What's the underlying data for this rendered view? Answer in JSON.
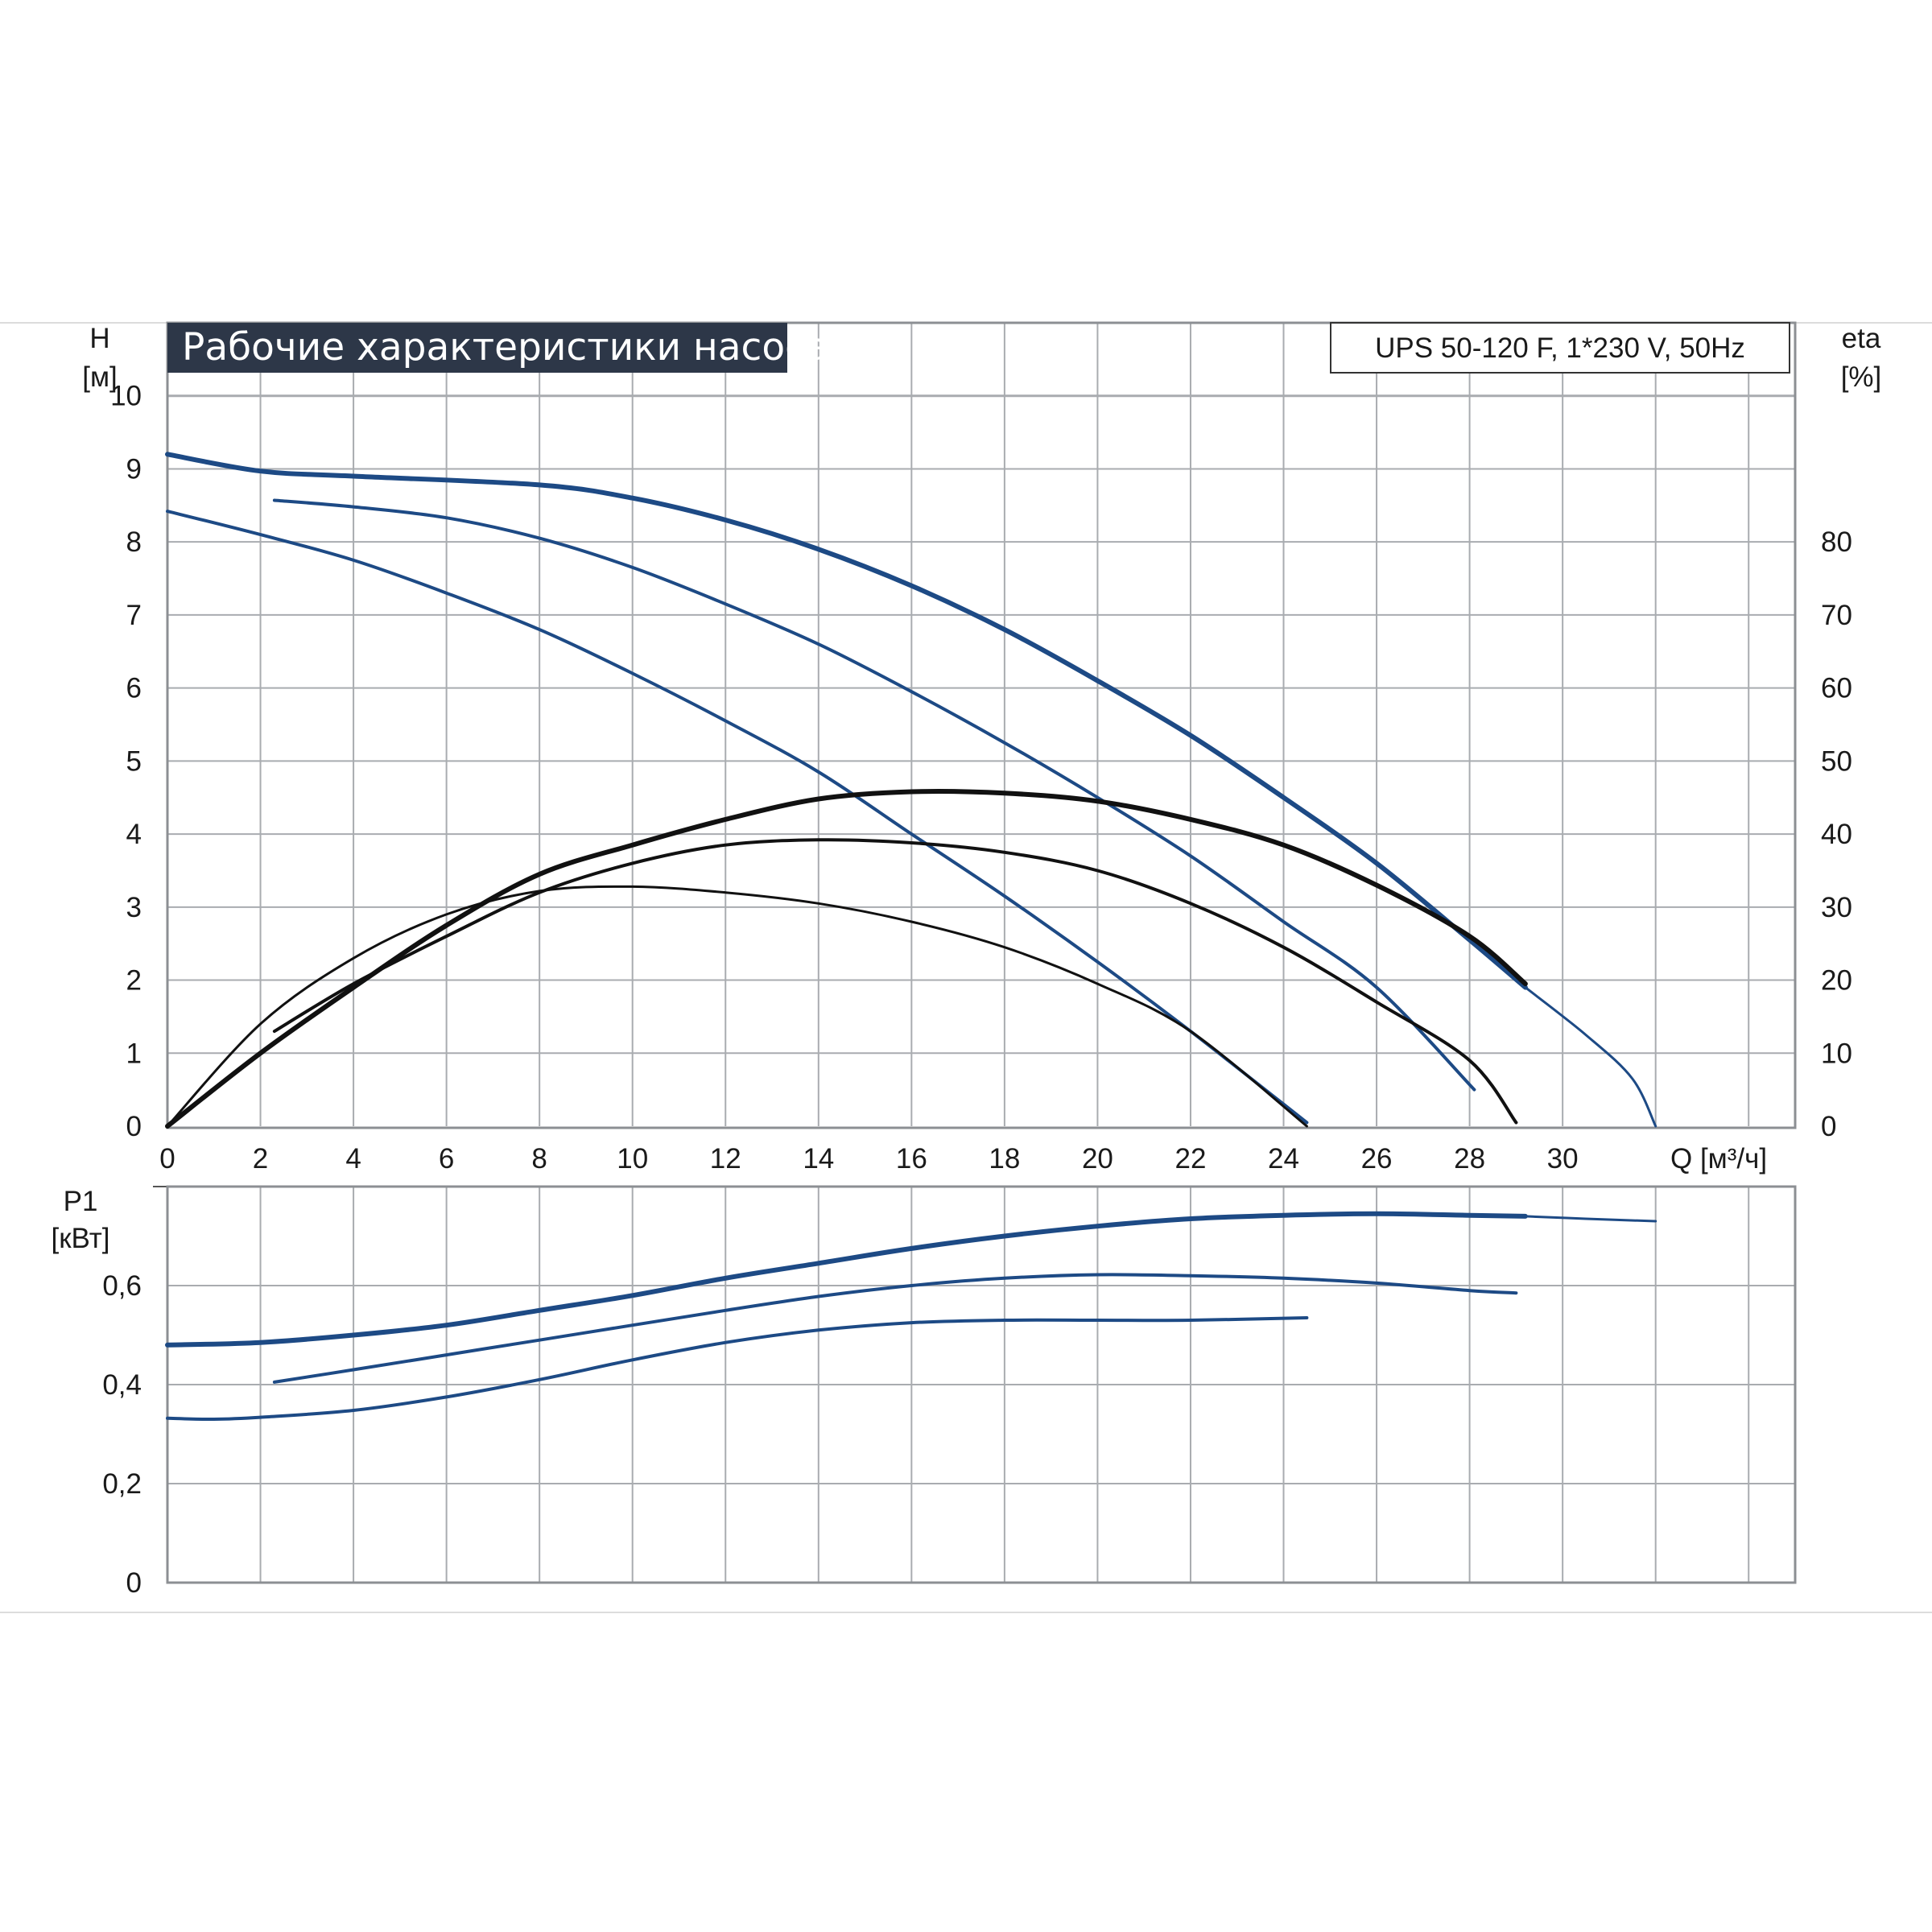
{
  "title": "Рабочие характеристики насоса",
  "model": "UPS 50-120 F, 1*230 V, 50Hz",
  "colors": {
    "blue": "#1d4a85",
    "black": "#111111",
    "grid": "#a9acb0",
    "title_bg": "#2d3748"
  },
  "chart_data": [
    {
      "id": "head-efficiency",
      "type": "line",
      "title": "Рабочие характеристики насоса",
      "xlabel": "Q [м³/ч]",
      "ylabel": "H [м]",
      "ylabel_name": "H",
      "ylabel_unit": "[м]",
      "y2label_name": "eta",
      "y2label_unit": "[%]",
      "xlim": [
        0,
        35
      ],
      "ylim": [
        0,
        11
      ],
      "y2lim": [
        0,
        110
      ],
      "xticks": [
        0,
        2,
        4,
        6,
        8,
        10,
        12,
        14,
        16,
        18,
        20,
        22,
        24,
        26,
        28,
        30
      ],
      "yticks": [
        0,
        1,
        2,
        3,
        4,
        5,
        6,
        7,
        8,
        9,
        10
      ],
      "y2ticks": [
        0,
        10,
        20,
        30,
        40,
        50,
        60,
        70,
        80
      ],
      "grid": true,
      "series": [
        {
          "kind": "head",
          "axis": "left",
          "color": "blue",
          "width": 6,
          "points": [
            [
              0,
              9.2
            ],
            [
              2,
              8.97
            ],
            [
              4,
              8.9
            ],
            [
              8,
              8.78
            ],
            [
              10,
              8.6
            ],
            [
              12,
              8.3
            ],
            [
              14,
              7.9
            ],
            [
              16,
              7.4
            ],
            [
              18,
              6.8
            ],
            [
              20,
              6.1
            ],
            [
              22,
              5.35
            ],
            [
              24,
              4.5
            ],
            [
              26,
              3.6
            ],
            [
              28,
              2.55
            ],
            [
              29.2,
              1.9
            ]
          ]
        },
        {
          "kind": "head",
          "axis": "left",
          "color": "blue",
          "width": 3,
          "points": [
            [
              29.2,
              1.9
            ],
            [
              30.5,
              1.25
            ],
            [
              31.5,
              0.65
            ],
            [
              32.0,
              0.0
            ]
          ]
        },
        {
          "kind": "head",
          "axis": "left",
          "color": "blue",
          "width": 4,
          "points": [
            [
              2.3,
              8.57
            ],
            [
              4,
              8.48
            ],
            [
              6,
              8.33
            ],
            [
              8,
              8.05
            ],
            [
              10,
              7.65
            ],
            [
              12,
              7.15
            ],
            [
              14,
              6.6
            ],
            [
              16,
              5.95
            ],
            [
              18,
              5.25
            ],
            [
              20,
              4.5
            ],
            [
              22,
              3.7
            ],
            [
              24,
              2.8
            ],
            [
              26,
              1.9
            ],
            [
              28.1,
              0.5
            ]
          ]
        },
        {
          "kind": "head",
          "axis": "left",
          "color": "blue",
          "width": 4,
          "points": [
            [
              0,
              8.42
            ],
            [
              2,
              8.1
            ],
            [
              4,
              7.75
            ],
            [
              6,
              7.3
            ],
            [
              8,
              6.8
            ],
            [
              10,
              6.2
            ],
            [
              12,
              5.55
            ],
            [
              14,
              4.85
            ],
            [
              16,
              4.0
            ],
            [
              18,
              3.15
            ],
            [
              20,
              2.25
            ],
            [
              22,
              1.3
            ],
            [
              24.5,
              0.05
            ]
          ]
        },
        {
          "kind": "efficiency",
          "axis": "right",
          "color": "black",
          "width": 6,
          "points": [
            [
              0,
              0
            ],
            [
              2,
              10
            ],
            [
              4,
              19
            ],
            [
              6,
              27.5
            ],
            [
              8,
              34.5
            ],
            [
              10,
              38.5
            ],
            [
              12,
              42
            ],
            [
              14,
              44.8
            ],
            [
              16,
              45.8
            ],
            [
              18,
              45.6
            ],
            [
              20,
              44.5
            ],
            [
              22,
              42
            ],
            [
              24,
              38.5
            ],
            [
              26,
              33
            ],
            [
              28,
              26
            ],
            [
              29.2,
              19.5
            ]
          ]
        },
        {
          "kind": "efficiency",
          "axis": "right",
          "color": "black",
          "width": 4,
          "points": [
            [
              2.3,
              13
            ],
            [
              4,
              19.5
            ],
            [
              6,
              26
            ],
            [
              8,
              32
            ],
            [
              10,
              36
            ],
            [
              12,
              38.5
            ],
            [
              14,
              39.2
            ],
            [
              16,
              38.8
            ],
            [
              18,
              37.5
            ],
            [
              20,
              35
            ],
            [
              22,
              30.5
            ],
            [
              24,
              24.5
            ],
            [
              26,
              17
            ],
            [
              28,
              9
            ],
            [
              29.0,
              0.5
            ]
          ]
        },
        {
          "kind": "efficiency",
          "axis": "right",
          "color": "black",
          "width": 3,
          "points": [
            [
              0,
              0
            ],
            [
              2,
              14
            ],
            [
              4,
              23
            ],
            [
              6,
              29
            ],
            [
              8,
              32.2
            ],
            [
              10,
              32.8
            ],
            [
              12,
              32
            ],
            [
              14,
              30.5
            ],
            [
              16,
              28
            ],
            [
              18,
              24.5
            ],
            [
              20,
              19.5
            ],
            [
              22,
              13
            ],
            [
              24.5,
              0
            ]
          ]
        }
      ]
    },
    {
      "id": "power",
      "type": "line",
      "xlabel": "",
      "ylabel": "P1 [кВт]",
      "ylabel_name": "P1",
      "ylabel_unit": "[кВт]",
      "xlim": [
        0,
        35
      ],
      "ylim": [
        0,
        0.8
      ],
      "yticks": [
        0,
        0.2,
        0.4,
        0.6
      ],
      "ytick_labels": [
        "0",
        "0,2",
        "0,4",
        "0,6"
      ],
      "grid": true,
      "series": [
        {
          "kind": "power",
          "color": "blue",
          "width": 6,
          "points": [
            [
              0,
              0.48
            ],
            [
              2,
              0.485
            ],
            [
              4,
              0.5
            ],
            [
              6,
              0.52
            ],
            [
              8,
              0.55
            ],
            [
              10,
              0.58
            ],
            [
              12,
              0.615
            ],
            [
              14,
              0.645
            ],
            [
              16,
              0.675
            ],
            [
              18,
              0.7
            ],
            [
              20,
              0.72
            ],
            [
              22,
              0.735
            ],
            [
              24,
              0.742
            ],
            [
              26,
              0.745
            ],
            [
              28,
              0.742
            ],
            [
              29.2,
              0.74
            ]
          ]
        },
        {
          "kind": "power",
          "color": "blue",
          "width": 3,
          "points": [
            [
              29.2,
              0.74
            ],
            [
              30.5,
              0.735
            ],
            [
              32.0,
              0.73
            ]
          ]
        },
        {
          "kind": "power",
          "color": "blue",
          "width": 4,
          "points": [
            [
              2.3,
              0.405
            ],
            [
              4,
              0.43
            ],
            [
              6,
              0.46
            ],
            [
              8,
              0.49
            ],
            [
              10,
              0.52
            ],
            [
              12,
              0.55
            ],
            [
              14,
              0.578
            ],
            [
              16,
              0.6
            ],
            [
              18,
              0.615
            ],
            [
              20,
              0.622
            ],
            [
              22,
              0.62
            ],
            [
              24,
              0.615
            ],
            [
              26,
              0.605
            ],
            [
              28,
              0.59
            ],
            [
              29.0,
              0.585
            ]
          ]
        },
        {
          "kind": "power",
          "color": "blue",
          "width": 4,
          "points": [
            [
              0,
              0.332
            ],
            [
              1,
              0.33
            ],
            [
              2,
              0.334
            ],
            [
              4,
              0.348
            ],
            [
              6,
              0.375
            ],
            [
              8,
              0.41
            ],
            [
              10,
              0.45
            ],
            [
              12,
              0.485
            ],
            [
              14,
              0.51
            ],
            [
              16,
              0.525
            ],
            [
              18,
              0.53
            ],
            [
              20,
              0.53
            ],
            [
              22,
              0.53
            ],
            [
              24.5,
              0.535
            ]
          ]
        }
      ]
    }
  ]
}
